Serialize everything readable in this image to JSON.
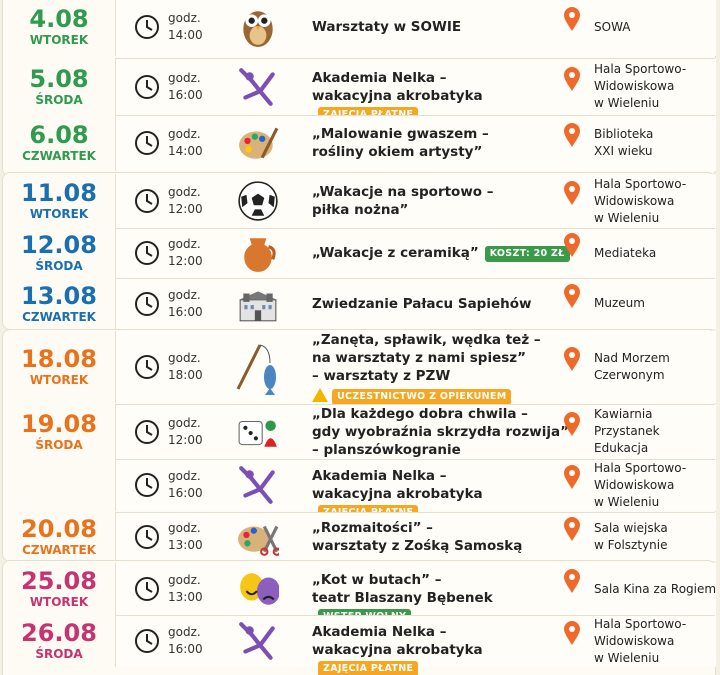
{
  "groups": [
    {
      "days": [
        {
          "date": "4.08",
          "weekday": "WTOREK",
          "events": [
            {
              "time_label": "godz.",
              "time": "14:00",
              "title": [
                "Warsztaty w SOWIE"
              ],
              "location": [
                "SOWA"
              ]
            }
          ]
        },
        {
          "date": "5.08",
          "weekday": "ŚRODA",
          "events": [
            {
              "time_label": "godz.",
              "time": "16:00",
              "title": [
                "Akademia Nelka –",
                "wakacyjna akrobatyka"
              ],
              "badge": {
                "text": "ZAJĘCIA PŁATNE",
                "color": "#f5a623"
              },
              "location": [
                "Hala Sportowo-",
                "Widowiskowa",
                "w Wieleniu"
              ]
            }
          ]
        },
        {
          "date": "6.08",
          "weekday": "CZWARTEK",
          "events": [
            {
              "time_label": "godz.",
              "time": "14:00",
              "title": [
                "„Malowanie gwaszem –",
                "rośliny okiem artysty”"
              ],
              "location": [
                "Biblioteka",
                "XXI wieku"
              ]
            }
          ]
        }
      ]
    },
    {
      "days": [
        {
          "date": "11.08",
          "weekday": "WTOREK",
          "events": [
            {
              "time_label": "godz.",
              "time": "12:00",
              "title": [
                "„Wakacje na sportowo –",
                "piłka nożna”"
              ],
              "location": [
                "Hala Sportowo-",
                "Widowiskowa",
                "w Wieleniu"
              ]
            }
          ]
        },
        {
          "date": "12.08",
          "weekday": "ŚRODA",
          "events": [
            {
              "time_label": "godz.",
              "time": "12:00",
              "title": [
                "„Wakacje z ceramiką”"
              ],
              "badge": {
                "text": "KOSZT: 20 ZŁ",
                "color": "#3a9a4a"
              },
              "location": [
                "Mediateka"
              ]
            }
          ]
        },
        {
          "date": "13.08",
          "weekday": "CZWARTEK",
          "events": [
            {
              "time_label": "godz.",
              "time": "16:00",
              "title": [
                "Zwiedzanie Pałacu Sapiehów"
              ],
              "location": [
                "Muzeum"
              ]
            }
          ]
        }
      ]
    },
    {
      "days": [
        {
          "date": "18.08",
          "weekday": "WTOREK",
          "events": [
            {
              "time_label": "godz.",
              "time": "18:00",
              "title": [
                "„Zanęta, spławik, wędka też –",
                "na warsztaty z nami spiesz”",
                "– warsztaty z PZW"
              ],
              "badge": {
                "text": "UCZESTNICTWO Z OPIEKUNEM",
                "color": "#f5a623"
              },
              "location": [
                "Nad Morzem",
                "Czerwonym"
              ]
            }
          ]
        },
        {
          "date": "19.08",
          "weekday": "ŚRODA",
          "events": [
            {
              "time_label": "godz.",
              "time": "12:00",
              "title": [
                "„Dla każdego dobra chwila –",
                "gdy wyobraźnia skrzydła rozwija”",
                "– planszówkogranie"
              ],
              "location": [
                "Kawiarnia",
                "Przystanek",
                "Edukacja"
              ]
            },
            {
              "time_label": "godz.",
              "time": "16:00",
              "title": [
                "Akademia Nelka –",
                "wakacyjna akrobatyka"
              ],
              "badge": {
                "text": "ZAJĘCIA PŁATNE",
                "color": "#f5a623"
              },
              "location": [
                "Hala Sportowo-",
                "Widowiskowa",
                "w Wieleniu"
              ]
            }
          ]
        },
        {
          "date": "20.08",
          "weekday": "CZWARTEK",
          "events": [
            {
              "time_label": "godz.",
              "time": "13:00",
              "title": [
                "„Rozmaitości” –",
                "warsztaty z Zośką Samoską"
              ],
              "location": [
                "Sala wiejska",
                "w Folsztynie"
              ]
            }
          ]
        }
      ]
    },
    {
      "days": [
        {
          "date": "25.08",
          "weekday": "WTOREK",
          "events": [
            {
              "time_label": "godz.",
              "time": "13:00",
              "title": [
                "„Kot w butach” –",
                "teatr Blaszany Bębenek"
              ],
              "badge": {
                "text": "WSTĘP WOLNY",
                "color": "#3a9a4a"
              },
              "location": [
                "Sala Kina za Rogiem"
              ]
            }
          ]
        },
        {
          "date": "26.08",
          "weekday": "ŚRODA",
          "events": [
            {
              "time_label": "godz.",
              "time": "16:00",
              "title": [
                "Akademia Nelka –",
                "wakacyjna akrobatyka"
              ],
              "badge": {
                "text": "ZAJĘCIA PŁATNE",
                "color": "#f5a623"
              },
              "location": [
                "Hala Sportowo-",
                "Widowiskowa",
                "w Wieleniu"
              ]
            }
          ]
        }
      ]
    }
  ]
}
